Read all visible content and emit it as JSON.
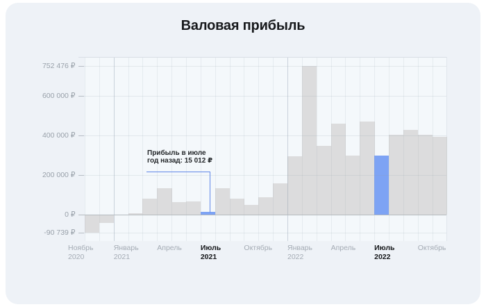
{
  "chart_data": {
    "type": "bar",
    "title": "Валовая прибыль",
    "xlabel": "",
    "ylabel": "",
    "currency_symbol": "₽",
    "ylim": [
      -90739,
      752476
    ],
    "grid": true,
    "legend": "none",
    "months": [
      {
        "label": "Ноябрь 2020",
        "value": -90739,
        "highlight": false
      },
      {
        "label": "Декабрь 2020",
        "value": -42000,
        "highlight": false
      },
      {
        "label": "Январь 2021",
        "value": 1500,
        "highlight": false
      },
      {
        "label": "Февраль 2021",
        "value": 7000,
        "highlight": false
      },
      {
        "label": "Март 2021",
        "value": 80000,
        "highlight": false
      },
      {
        "label": "Апрель 2021",
        "value": 134000,
        "highlight": false
      },
      {
        "label": "Май 2021",
        "value": 64000,
        "highlight": false
      },
      {
        "label": "Июнь 2021",
        "value": 66000,
        "highlight": false
      },
      {
        "label": "Июль 2021",
        "value": 15012,
        "highlight": true
      },
      {
        "label": "Август 2021",
        "value": 134000,
        "highlight": false
      },
      {
        "label": "Сентябрь 2021",
        "value": 81000,
        "highlight": false
      },
      {
        "label": "Октябрь 2021",
        "value": 50000,
        "highlight": false
      },
      {
        "label": "Ноябрь 2021",
        "value": 88000,
        "highlight": false
      },
      {
        "label": "Декабрь 2021",
        "value": 160000,
        "highlight": false
      },
      {
        "label": "Январь 2022",
        "value": 295000,
        "highlight": false
      },
      {
        "label": "Февраль 2022",
        "value": 752476,
        "highlight": false
      },
      {
        "label": "Март 2022",
        "value": 348000,
        "highlight": false
      },
      {
        "label": "Апрель 2022",
        "value": 460000,
        "highlight": false
      },
      {
        "label": "Май 2022",
        "value": 300000,
        "highlight": false
      },
      {
        "label": "Июнь 2022",
        "value": 472000,
        "highlight": false
      },
      {
        "label": "Июль 2022",
        "value": 300000,
        "highlight": true
      },
      {
        "label": "Август 2022",
        "value": 405000,
        "highlight": false
      },
      {
        "label": "Сентябрь 2022",
        "value": 430000,
        "highlight": false
      },
      {
        "label": "Октябрь 2022",
        "value": 405000,
        "highlight": false
      },
      {
        "label": "Ноябрь 2022",
        "value": 395000,
        "highlight": false
      }
    ],
    "y_axis_ticks": [
      {
        "label": "752 476 ₽",
        "value": 752476
      },
      {
        "label": "600 000 ₽",
        "value": 600000
      },
      {
        "label": "400 000 ₽",
        "value": 400000
      },
      {
        "label": "200 000 ₽",
        "value": 200000
      },
      {
        "label": "0 ₽",
        "value": 0
      },
      {
        "label": "-90 739 ₽",
        "value": -90739
      }
    ],
    "x_axis_labels": [
      {
        "line1": "Ноябрь",
        "line2": "2020",
        "bold": false,
        "month_index": 0
      },
      {
        "line1": "Январь",
        "line2": "2021",
        "bold": false,
        "month_index": 2
      },
      {
        "line1": "Апрель",
        "line2": "",
        "bold": false,
        "month_index": 5
      },
      {
        "line1": "Июль",
        "line2": "2021",
        "bold": true,
        "month_index": 8
      },
      {
        "line1": "Октябрь",
        "line2": "",
        "bold": false,
        "month_index": 11
      },
      {
        "line1": "Январь",
        "line2": "2022",
        "bold": false,
        "month_index": 14
      },
      {
        "line1": "Апрель",
        "line2": "",
        "bold": false,
        "month_index": 17
      },
      {
        "line1": "Июль",
        "line2": "2022",
        "bold": true,
        "month_index": 20
      },
      {
        "line1": "Октябрь",
        "line2": "",
        "bold": false,
        "month_index": 23
      }
    ],
    "annotation": {
      "line1": "Прибыль в июле",
      "line2": "год назад: 15 012 ₽",
      "value": 15012,
      "target_month_index": 8
    },
    "colors": {
      "bar": "#dcdcdd",
      "highlight_bar": "#7da3f4",
      "callout_line": "#5f86e8",
      "card_background": "#eef2f7"
    }
  }
}
